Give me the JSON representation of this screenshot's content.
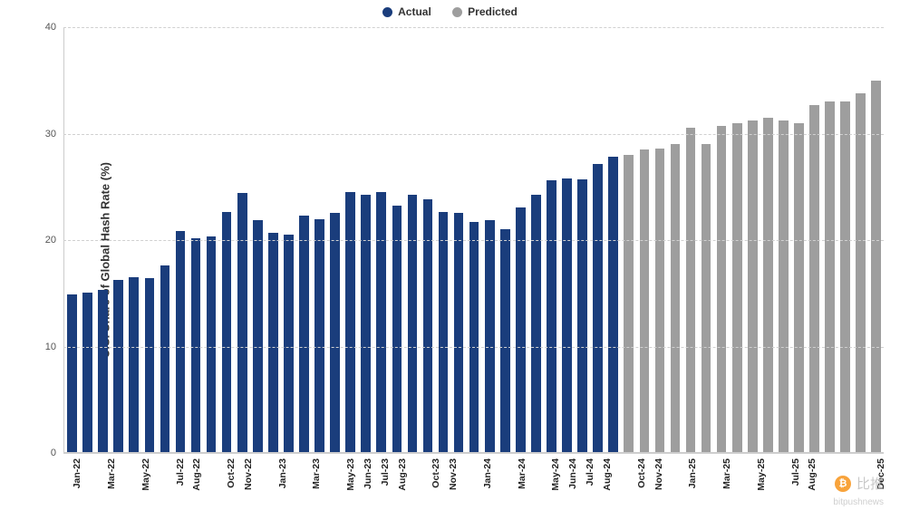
{
  "legend": {
    "items": [
      {
        "label": "Actual",
        "color": "#1a3d7c"
      },
      {
        "label": "Predicted",
        "color": "#9e9e9e"
      }
    ]
  },
  "y_axis": {
    "title": "U.S. Share of Global Hash Rate (%)",
    "min": 0,
    "max": 40,
    "ticks": [
      0,
      10,
      20,
      30,
      40
    ],
    "label_fontsize": 11,
    "title_fontsize": 13,
    "grid_color": "#d0d0d0"
  },
  "chart": {
    "type": "bar",
    "background_color": "#ffffff",
    "bar_width_ratio": 0.62,
    "categories": [
      "Jan-22",
      "",
      "Mar-22",
      "",
      "May-22",
      "",
      "Jul-22",
      "Aug-22",
      "",
      "Oct-22",
      "Nov-22",
      "",
      "Jan-23",
      "",
      "Mar-23",
      "",
      "May-23",
      "Jun-23",
      "Jul-23",
      "Aug-23",
      "",
      "Oct-23",
      "Nov-23",
      "",
      "Jan-24",
      "",
      "Mar-24",
      "",
      "May-24",
      "Jun-24",
      "Jul-24",
      "Aug-24",
      "",
      "Oct-24",
      "Nov-24",
      "",
      "Jan-25",
      "",
      "Mar-25",
      "",
      "May-25",
      "",
      "Jul-25",
      "Aug-25",
      "",
      "",
      "",
      "Dec-25"
    ],
    "series": {
      "actual": {
        "color": "#1a3d7c",
        "values": [
          14.8,
          15.0,
          15.3,
          16.2,
          16.5,
          16.4,
          17.6,
          20.8,
          20.1,
          20.3,
          22.6,
          24.4,
          21.8,
          20.6,
          20.5,
          22.3,
          21.9,
          22.5,
          24.5,
          24.2,
          24.5,
          23.2,
          24.2,
          23.8,
          22.6,
          22.5,
          21.7,
          21.8,
          21.0,
          23.0,
          24.2,
          25.6,
          25.8,
          25.7,
          27.1,
          27.8
        ]
      },
      "predicted": {
        "color": "#9e9e9e",
        "values": [
          28.0,
          28.5,
          28.6,
          29.0,
          30.5,
          29.0,
          30.7,
          31.0,
          31.2,
          31.5,
          31.2,
          31.0,
          32.7,
          33.0,
          33.0,
          33.8,
          35.0
        ]
      }
    }
  },
  "watermark": {
    "text": "比推",
    "sub": "bitpushnews",
    "icon_bg": "#f7931a"
  }
}
